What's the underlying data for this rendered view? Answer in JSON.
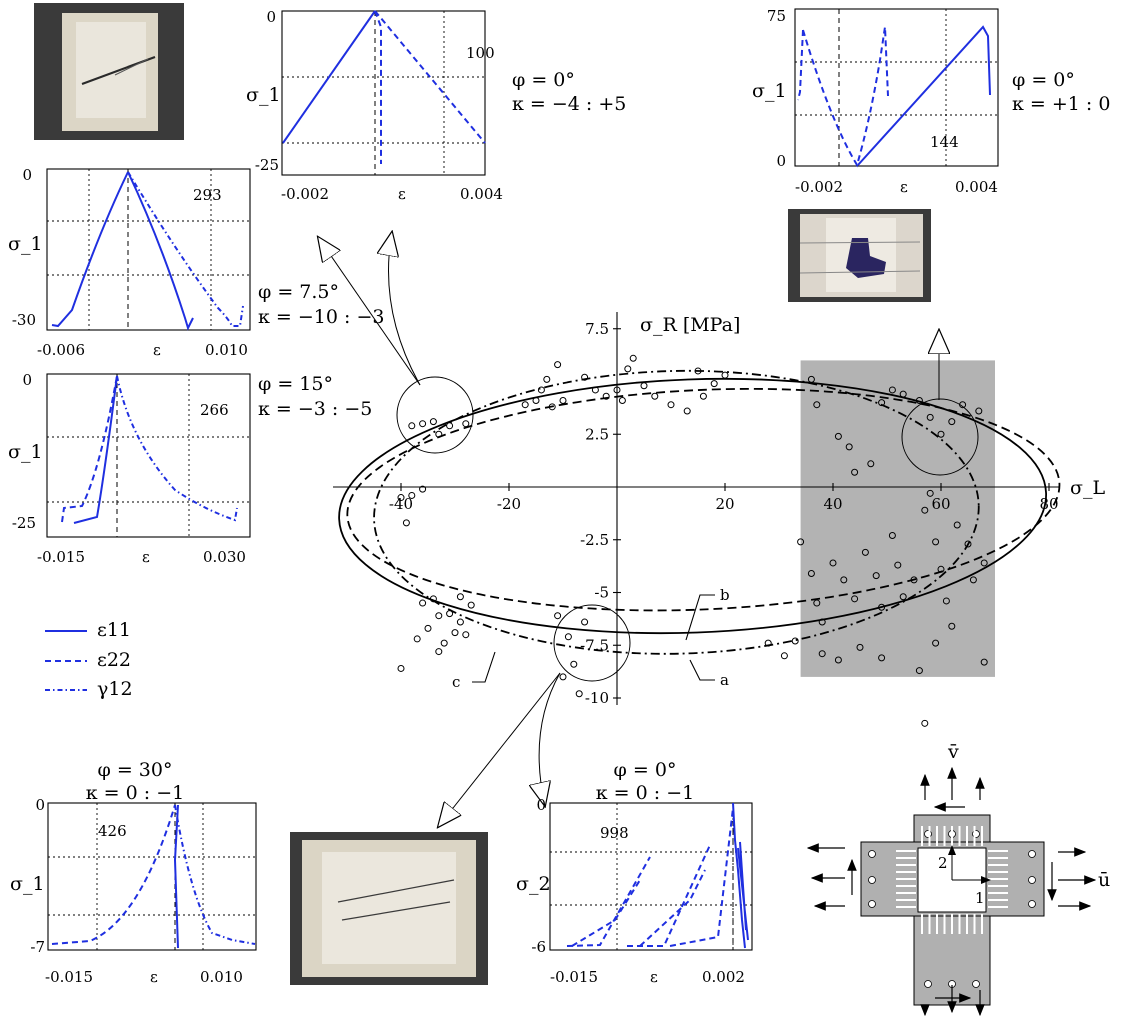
{
  "main": {
    "yaxis_label": "σ_R [MPa]",
    "xaxis_label": "σ_L",
    "x_ticks": [
      "-40",
      "-20",
      "20",
      "40",
      "60",
      "80"
    ],
    "y_ticks": [
      "7.5",
      "2.5",
      "-2.5",
      "-5",
      "-7.5",
      "-10"
    ],
    "curve_labels": [
      "a",
      "b",
      "c"
    ]
  },
  "insets": [
    {
      "id": "tl",
      "number": "293",
      "ylabel": "σ_1",
      "ymax": "0",
      "ymin": "-30",
      "xmin": "-0.006",
      "xlabel": "ε",
      "xmax": "0.010"
    },
    {
      "id": "ml",
      "number": "266",
      "ylabel": "σ_1",
      "ymax": "0",
      "ymin": "-25",
      "xmin": "-0.015",
      "xlabel": "ε",
      "xmax": "0.030"
    },
    {
      "id": "tc",
      "number": "100",
      "ylabel": "σ_1",
      "ymax": "0",
      "ymin": "-25",
      "xmin": "-0.002",
      "xlabel": "ε",
      "xmax": "0.004"
    },
    {
      "id": "tr",
      "number": "144",
      "ylabel": "σ_1",
      "ymax": "75",
      "ymin": "0",
      "xmin": "-0.002",
      "xlabel": "ε",
      "xmax": "0.004"
    },
    {
      "id": "bl",
      "number": "426",
      "ylabel": "σ_1",
      "ymax": "0",
      "ymin": "-7",
      "xmin": "-0.015",
      "xlabel": "ε",
      "xmax": "0.010"
    },
    {
      "id": "bc",
      "number": "998",
      "ylabel": "σ_2",
      "ymax": "0",
      "ymin": "-6",
      "xmin": "-0.015",
      "xlabel": "ε",
      "xmax": "0.002"
    }
  ],
  "annotations": {
    "tc_phi": "φ = 0°",
    "tc_kappa": "κ = −4 : +5",
    "tr_phi": "φ = 0°",
    "tr_kappa": "κ = +1 : 0",
    "tl_phi": "φ = 7.5°",
    "tl_kappa": "κ = −10 : −3",
    "ml_phi": "φ = 15°",
    "ml_kappa": "κ = −3 : −5",
    "bl_phi": "φ = 30°",
    "bl_kappa": "κ = 0 : −1",
    "bc_phi": "φ = 0°",
    "bc_kappa": "κ = 0 : −1"
  },
  "legend": [
    {
      "label": "ε11",
      "style": "solid"
    },
    {
      "label": "ε22",
      "style": "dashed"
    },
    {
      "label": "γ12",
      "style": "dashdot"
    }
  ],
  "specimen": {
    "v_label": "v̄",
    "u_label": "ū",
    "axis1": "1",
    "axis2": "2"
  },
  "colors": {
    "curve_blue": "#1f2fe0",
    "shade": "#b3b3b3"
  },
  "chart_data": {
    "type": "scatter",
    "title": "",
    "xlabel": "σ_L",
    "ylabel": "σ_R [MPa]",
    "xlim": [
      -42,
      82
    ],
    "ylim": [
      -10.5,
      8.5
    ],
    "shaded_region": {
      "x": [
        34,
        70
      ],
      "y": [
        -9,
        6
      ]
    },
    "series": [
      {
        "name": "a",
        "style": "solid",
        "ellipse": {
          "cx": 14,
          "cy": -0.9,
          "a": 65.5,
          "b": 6.0,
          "rot_deg": -2.1
        }
      },
      {
        "name": "b",
        "style": "dashed",
        "ellipse": {
          "cx": 16,
          "cy": -0.6,
          "a": 66.0,
          "b": 5.2,
          "rot_deg": -2.6
        }
      },
      {
        "name": "c",
        "style": "dashdot",
        "ellipse": {
          "cx": 11,
          "cy": -1.2,
          "a": 56.0,
          "b": 6.7,
          "rot_deg": -1.3
        }
      }
    ],
    "points": [
      [
        -11,
        5.8
      ],
      [
        -13,
        5.1
      ],
      [
        -14,
        4.6
      ],
      [
        -15,
        4.1
      ],
      [
        -17,
        3.9
      ],
      [
        -12,
        3.8
      ],
      [
        -10,
        4.1
      ],
      [
        -6,
        5.2
      ],
      [
        -4,
        4.6
      ],
      [
        -2,
        4.3
      ],
      [
        1,
        4.1
      ],
      [
        0,
        4.6
      ],
      [
        2,
        5.6
      ],
      [
        3,
        6.1
      ],
      [
        5,
        4.8
      ],
      [
        7,
        4.3
      ],
      [
        10,
        3.9
      ],
      [
        13,
        3.6
      ],
      [
        16,
        4.3
      ],
      [
        18,
        4.9
      ],
      [
        20,
        5.3
      ],
      [
        15,
        5.5
      ],
      [
        -28,
        3.0
      ],
      [
        -31,
        2.9
      ],
      [
        -34,
        3.1
      ],
      [
        -36,
        3.0
      ],
      [
        -33,
        2.5
      ],
      [
        -38,
        2.9
      ],
      [
        -36,
        -0.1
      ],
      [
        -38,
        -0.4
      ],
      [
        -40,
        -0.5
      ],
      [
        -39,
        -1.7
      ],
      [
        -36,
        -5.5
      ],
      [
        -34,
        -5.3
      ],
      [
        -33,
        -6.1
      ],
      [
        -35,
        -6.7
      ],
      [
        -37,
        -7.2
      ],
      [
        -31,
        -6.0
      ],
      [
        -29,
        -6.4
      ],
      [
        -30,
        -6.9
      ],
      [
        -32,
        -7.4
      ],
      [
        -28,
        -7.0
      ],
      [
        -27,
        -5.6
      ],
      [
        -29,
        -5.2
      ],
      [
        -33,
        -7.8
      ],
      [
        -40,
        -8.6
      ],
      [
        -9,
        -7.1
      ],
      [
        -8,
        -8.4
      ],
      [
        -10,
        -9.0
      ],
      [
        -7,
        -9.8
      ],
      [
        -11,
        -6.1
      ],
      [
        -6,
        -6.4
      ],
      [
        36,
        5.1
      ],
      [
        37,
        3.9
      ],
      [
        41,
        2.4
      ],
      [
        43,
        1.9
      ],
      [
        44,
        0.7
      ],
      [
        47,
        1.1
      ],
      [
        49,
        4.0
      ],
      [
        51,
        4.6
      ],
      [
        53,
        4.4
      ],
      [
        56,
        4.1
      ],
      [
        58,
        3.3
      ],
      [
        60,
        2.5
      ],
      [
        62,
        3.1
      ],
      [
        64,
        3.9
      ],
      [
        67,
        3.6
      ],
      [
        34,
        -2.6
      ],
      [
        36,
        -4.1
      ],
      [
        37,
        -5.5
      ],
      [
        38,
        -6.4
      ],
      [
        40,
        -3.6
      ],
      [
        42,
        -4.4
      ],
      [
        44,
        -5.3
      ],
      [
        46,
        -3.1
      ],
      [
        48,
        -4.2
      ],
      [
        49,
        -5.7
      ],
      [
        51,
        -2.3
      ],
      [
        52,
        -3.7
      ],
      [
        53,
        -5.2
      ],
      [
        55,
        -4.4
      ],
      [
        57,
        -1.1
      ],
      [
        58,
        -0.3
      ],
      [
        59,
        -2.6
      ],
      [
        60,
        -3.9
      ],
      [
        61,
        -5.4
      ],
      [
        63,
        -1.8
      ],
      [
        65,
        -2.7
      ],
      [
        66,
        -4.4
      ],
      [
        68,
        -3.6
      ],
      [
        68,
        -8.3
      ],
      [
        62,
        -6.6
      ],
      [
        59,
        -7.4
      ],
      [
        56,
        -8.7
      ],
      [
        49,
        -8.1
      ],
      [
        45,
        -7.6
      ],
      [
        41,
        -8.2
      ],
      [
        38,
        -7.9
      ],
      [
        33,
        -7.3
      ],
      [
        31,
        -8.0
      ],
      [
        28,
        -7.4
      ],
      [
        57,
        -11.2
      ]
    ]
  }
}
